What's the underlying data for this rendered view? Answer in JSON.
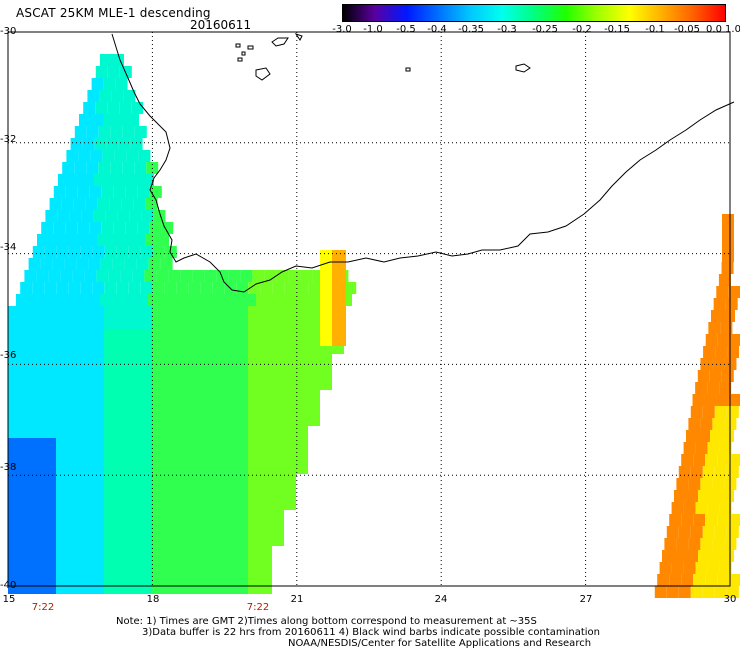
{
  "title": "ASCAT 25KM MLE-1 descending",
  "date": "20160611",
  "colorbar": {
    "labels": [
      "-3.0",
      "-1.0",
      "-0.5",
      "-0.4",
      "-0.35",
      "-0.3",
      "-0.25",
      "-0.2",
      "-0.15",
      "-0.1",
      "-0.05",
      "0.0",
      "1.0"
    ],
    "colors": [
      "#000000",
      "#5a00a0",
      "#0018ff",
      "#0070ff",
      "#00c8ff",
      "#00ffee",
      "#00ff80",
      "#20ff00",
      "#a0ff00",
      "#ffff00",
      "#ffb000",
      "#ff6000",
      "#ff0000"
    ]
  },
  "map": {
    "lat_labels": [
      "-30",
      "-32",
      "-34",
      "-36",
      "-38",
      "-40"
    ],
    "lon_labels": [
      "15",
      "18",
      "21",
      "24",
      "27",
      "30"
    ],
    "lat_range": [
      -40,
      -30
    ],
    "lon_range": [
      15,
      30
    ],
    "grid": "dotted",
    "times": [
      "7:22",
      "7:22"
    ]
  },
  "notes": [
    "Note: 1) Times are GMT 2)Times along bottom correspond to measurement at ~35S",
    "3)Data buffer is 22 hrs from 20160611 4) Black wind barbs indicate possible contamination",
    "NOAA/NESDIS/Center for Satellite Applications and Research"
  ]
}
